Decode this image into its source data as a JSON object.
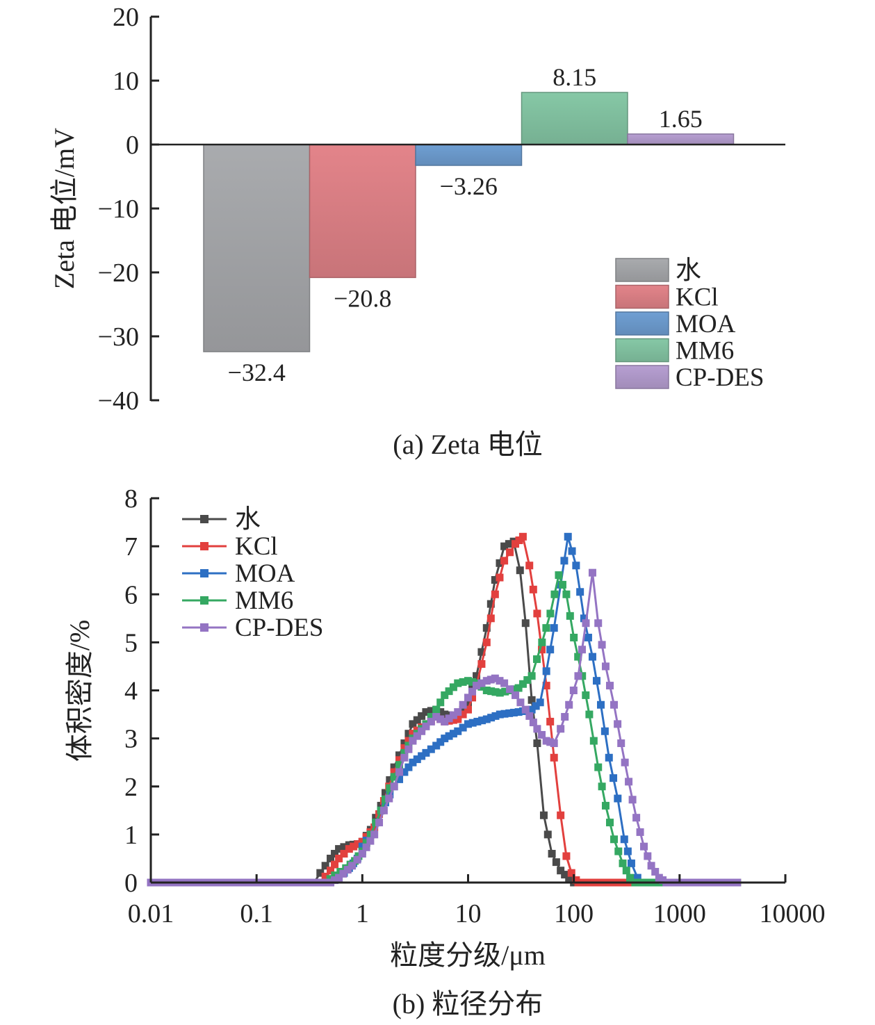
{
  "chart_data": [
    {
      "type": "bar",
      "caption": "(a) Zeta 电位",
      "ylabel": "Zeta 电位/mV",
      "ylim": [
        -40,
        20
      ],
      "yticks": [
        "20",
        "10",
        "0",
        "−10",
        "−20",
        "−30",
        "−40"
      ],
      "categories": [
        "水",
        "KCl",
        "MOA",
        "MM6",
        "CP-DES"
      ],
      "values": [
        -32.4,
        -20.8,
        -3.26,
        8.15,
        1.65
      ],
      "value_labels": [
        "−32.4",
        "−20.8",
        "−3.26",
        "8.15",
        "1.65"
      ],
      "colors": [
        "#a9abae",
        "#e3848a",
        "#6f9fd3",
        "#86c8a6",
        "#b79fd2"
      ],
      "legend_position": "lower-right"
    },
    {
      "type": "line",
      "caption": "(b) 粒径分布",
      "xlabel": "粒度分级/μm",
      "ylabel": "体积密度/%",
      "x_scale": "log",
      "xlim": [
        0.01,
        10000
      ],
      "ylim": [
        0,
        8
      ],
      "xticks": [
        "0.01",
        "0.1",
        "1",
        "10",
        "100",
        "1000",
        "10000"
      ],
      "yticks": [
        "0",
        "1",
        "2",
        "3",
        "4",
        "5",
        "6",
        "7",
        "8"
      ],
      "legend_position": "top-left",
      "series": [
        {
          "name": "水",
          "color": "#4a4a4a",
          "points": [
            [
              0.01,
              0
            ],
            [
              0.35,
              0
            ],
            [
              0.4,
              0.2
            ],
            [
              0.5,
              0.5
            ],
            [
              0.6,
              0.7
            ],
            [
              0.75,
              0.78
            ],
            [
              0.9,
              0.8
            ],
            [
              1.0,
              0.85
            ],
            [
              1.2,
              1.1
            ],
            [
              1.5,
              1.6
            ],
            [
              2,
              2.4
            ],
            [
              2.5,
              2.9
            ],
            [
              3,
              3.3
            ],
            [
              4,
              3.55
            ],
            [
              5,
              3.6
            ],
            [
              6,
              3.5
            ],
            [
              8,
              3.45
            ],
            [
              10,
              3.75
            ],
            [
              12,
              4.3
            ],
            [
              15,
              5.3
            ],
            [
              18,
              6.3
            ],
            [
              22,
              7.0
            ],
            [
              27,
              7.1
            ],
            [
              31,
              6.5
            ],
            [
              35,
              5.4
            ],
            [
              40,
              3.8
            ],
            [
              45,
              2.9
            ],
            [
              52,
              1.4
            ],
            [
              62,
              0.6
            ],
            [
              75,
              0.25
            ],
            [
              90,
              0.08
            ],
            [
              100,
              0
            ],
            [
              3500,
              0
            ]
          ]
        },
        {
          "name": "KCl",
          "color": "#e2403e",
          "points": [
            [
              0.01,
              0
            ],
            [
              0.4,
              0
            ],
            [
              0.5,
              0.25
            ],
            [
              0.6,
              0.5
            ],
            [
              0.75,
              0.7
            ],
            [
              1.0,
              0.85
            ],
            [
              1.3,
              1.15
            ],
            [
              1.6,
              1.7
            ],
            [
              2,
              2.3
            ],
            [
              2.5,
              2.8
            ],
            [
              3,
              3.1
            ],
            [
              4,
              3.3
            ],
            [
              5,
              3.45
            ],
            [
              6,
              3.35
            ],
            [
              8,
              3.4
            ],
            [
              10,
              3.6
            ],
            [
              12,
              4.1
            ],
            [
              15,
              5.0
            ],
            [
              18,
              6.0
            ],
            [
              22,
              6.7
            ],
            [
              28,
              7.05
            ],
            [
              33,
              7.2
            ],
            [
              38,
              6.6
            ],
            [
              45,
              5.6
            ],
            [
              55,
              4.1
            ],
            [
              65,
              2.6
            ],
            [
              75,
              1.4
            ],
            [
              85,
              0.55
            ],
            [
              95,
              0.2
            ],
            [
              105,
              0.05
            ],
            [
              110,
              0
            ],
            [
              3500,
              0
            ]
          ]
        },
        {
          "name": "MOA",
          "color": "#2d6fc3",
          "points": [
            [
              0.01,
              0
            ],
            [
              0.5,
              0
            ],
            [
              0.6,
              0.1
            ],
            [
              0.75,
              0.3
            ],
            [
              0.9,
              0.5
            ],
            [
              1.0,
              0.75
            ],
            [
              1.2,
              1.0
            ],
            [
              1.5,
              1.5
            ],
            [
              2,
              2.0
            ],
            [
              2.5,
              2.3
            ],
            [
              3,
              2.5
            ],
            [
              4,
              2.7
            ],
            [
              5,
              2.85
            ],
            [
              6,
              3.0
            ],
            [
              8,
              3.15
            ],
            [
              10,
              3.3
            ],
            [
              15,
              3.4
            ],
            [
              20,
              3.5
            ],
            [
              30,
              3.55
            ],
            [
              40,
              3.6
            ],
            [
              48,
              3.75
            ],
            [
              55,
              4.4
            ],
            [
              65,
              5.3
            ],
            [
              75,
              6.2
            ],
            [
              88,
              7.2
            ],
            [
              105,
              6.6
            ],
            [
              125,
              5.5
            ],
            [
              150,
              4.7
            ],
            [
              180,
              3.7
            ],
            [
              215,
              2.6
            ],
            [
              260,
              1.75
            ],
            [
              300,
              0.9
            ],
            [
              350,
              0.4
            ],
            [
              400,
              0.1
            ],
            [
              450,
              0
            ],
            [
              3500,
              0
            ]
          ]
        },
        {
          "name": "MM6",
          "color": "#35a862",
          "points": [
            [
              0.01,
              0
            ],
            [
              0.45,
              0
            ],
            [
              0.55,
              0.15
            ],
            [
              0.7,
              0.3
            ],
            [
              0.85,
              0.45
            ],
            [
              1.0,
              0.65
            ],
            [
              1.2,
              1.0
            ],
            [
              1.5,
              1.5
            ],
            [
              2,
              2.2
            ],
            [
              2.5,
              2.7
            ],
            [
              3,
              3.0
            ],
            [
              4,
              3.3
            ],
            [
              5,
              3.6
            ],
            [
              6,
              3.9
            ],
            [
              8,
              4.15
            ],
            [
              10,
              4.2
            ],
            [
              12,
              4.15
            ],
            [
              15,
              4.0
            ],
            [
              20,
              3.95
            ],
            [
              25,
              4.0
            ],
            [
              30,
              4.05
            ],
            [
              40,
              4.3
            ],
            [
              50,
              5.0
            ],
            [
              60,
              5.6
            ],
            [
              72,
              6.4
            ],
            [
              85,
              6.0
            ],
            [
              100,
              5.1
            ],
            [
              120,
              4.3
            ],
            [
              140,
              3.5
            ],
            [
              170,
              2.4
            ],
            [
              200,
              1.6
            ],
            [
              240,
              0.9
            ],
            [
              290,
              0.4
            ],
            [
              340,
              0.1
            ],
            [
              380,
              0
            ],
            [
              3500,
              0
            ]
          ]
        },
        {
          "name": "CP-DES",
          "color": "#9474c3",
          "points": [
            [
              0.01,
              0
            ],
            [
              0.5,
              0
            ],
            [
              0.6,
              0.1
            ],
            [
              0.8,
              0.35
            ],
            [
              1.0,
              0.6
            ],
            [
              1.3,
              1.0
            ],
            [
              1.6,
              1.5
            ],
            [
              2,
              2.0
            ],
            [
              2.5,
              2.6
            ],
            [
              3,
              2.95
            ],
            [
              4,
              3.25
            ],
            [
              5,
              3.45
            ],
            [
              6,
              3.35
            ],
            [
              8,
              3.55
            ],
            [
              10,
              3.85
            ],
            [
              12,
              4.1
            ],
            [
              15,
              4.2
            ],
            [
              18,
              4.25
            ],
            [
              22,
              4.15
            ],
            [
              28,
              3.9
            ],
            [
              35,
              3.6
            ],
            [
              45,
              3.2
            ],
            [
              55,
              2.95
            ],
            [
              65,
              2.9
            ],
            [
              75,
              3.2
            ],
            [
              90,
              3.7
            ],
            [
              110,
              4.3
            ],
            [
              130,
              5.4
            ],
            [
              150,
              6.45
            ],
            [
              170,
              5.4
            ],
            [
              200,
              4.5
            ],
            [
              240,
              3.7
            ],
            [
              280,
              2.9
            ],
            [
              330,
              2.1
            ],
            [
              390,
              1.35
            ],
            [
              460,
              0.75
            ],
            [
              540,
              0.35
            ],
            [
              640,
              0.1
            ],
            [
              750,
              0
            ],
            [
              3500,
              0
            ]
          ]
        }
      ]
    }
  ]
}
